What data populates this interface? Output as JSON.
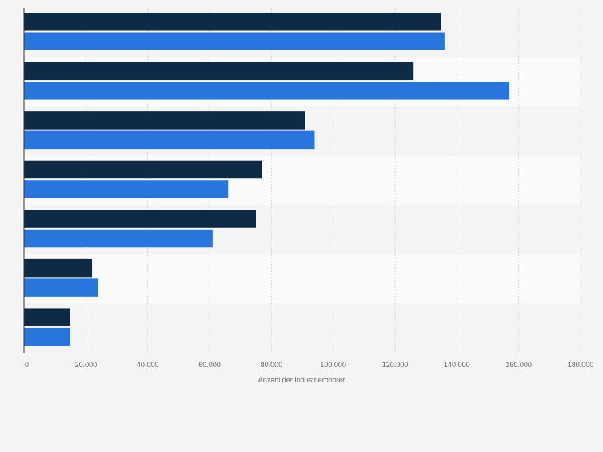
{
  "chart_data": {
    "type": "bar",
    "orientation": "horizontal",
    "categories": [
      "",
      "",
      "",
      "",
      "",
      "",
      ""
    ],
    "series": [
      {
        "values": [
          135000,
          126000,
          91000,
          77000,
          75000,
          22000,
          15000
        ],
        "color": "#0f2a44"
      },
      {
        "values": [
          136000,
          157000,
          94000,
          66000,
          61000,
          24000,
          15000
        ],
        "color": "#2876dd"
      }
    ],
    "x_ticks": [
      "0",
      "20.000",
      "40.000",
      "60.000",
      "80.000",
      "100.000",
      "120.000",
      "140.000",
      "160.000",
      "180.000"
    ],
    "xlim": [
      0,
      180000
    ],
    "xlabel": "Anzahl der Industrieroboter",
    "ylabel": "",
    "title": "",
    "grid": true,
    "legend": "none"
  }
}
